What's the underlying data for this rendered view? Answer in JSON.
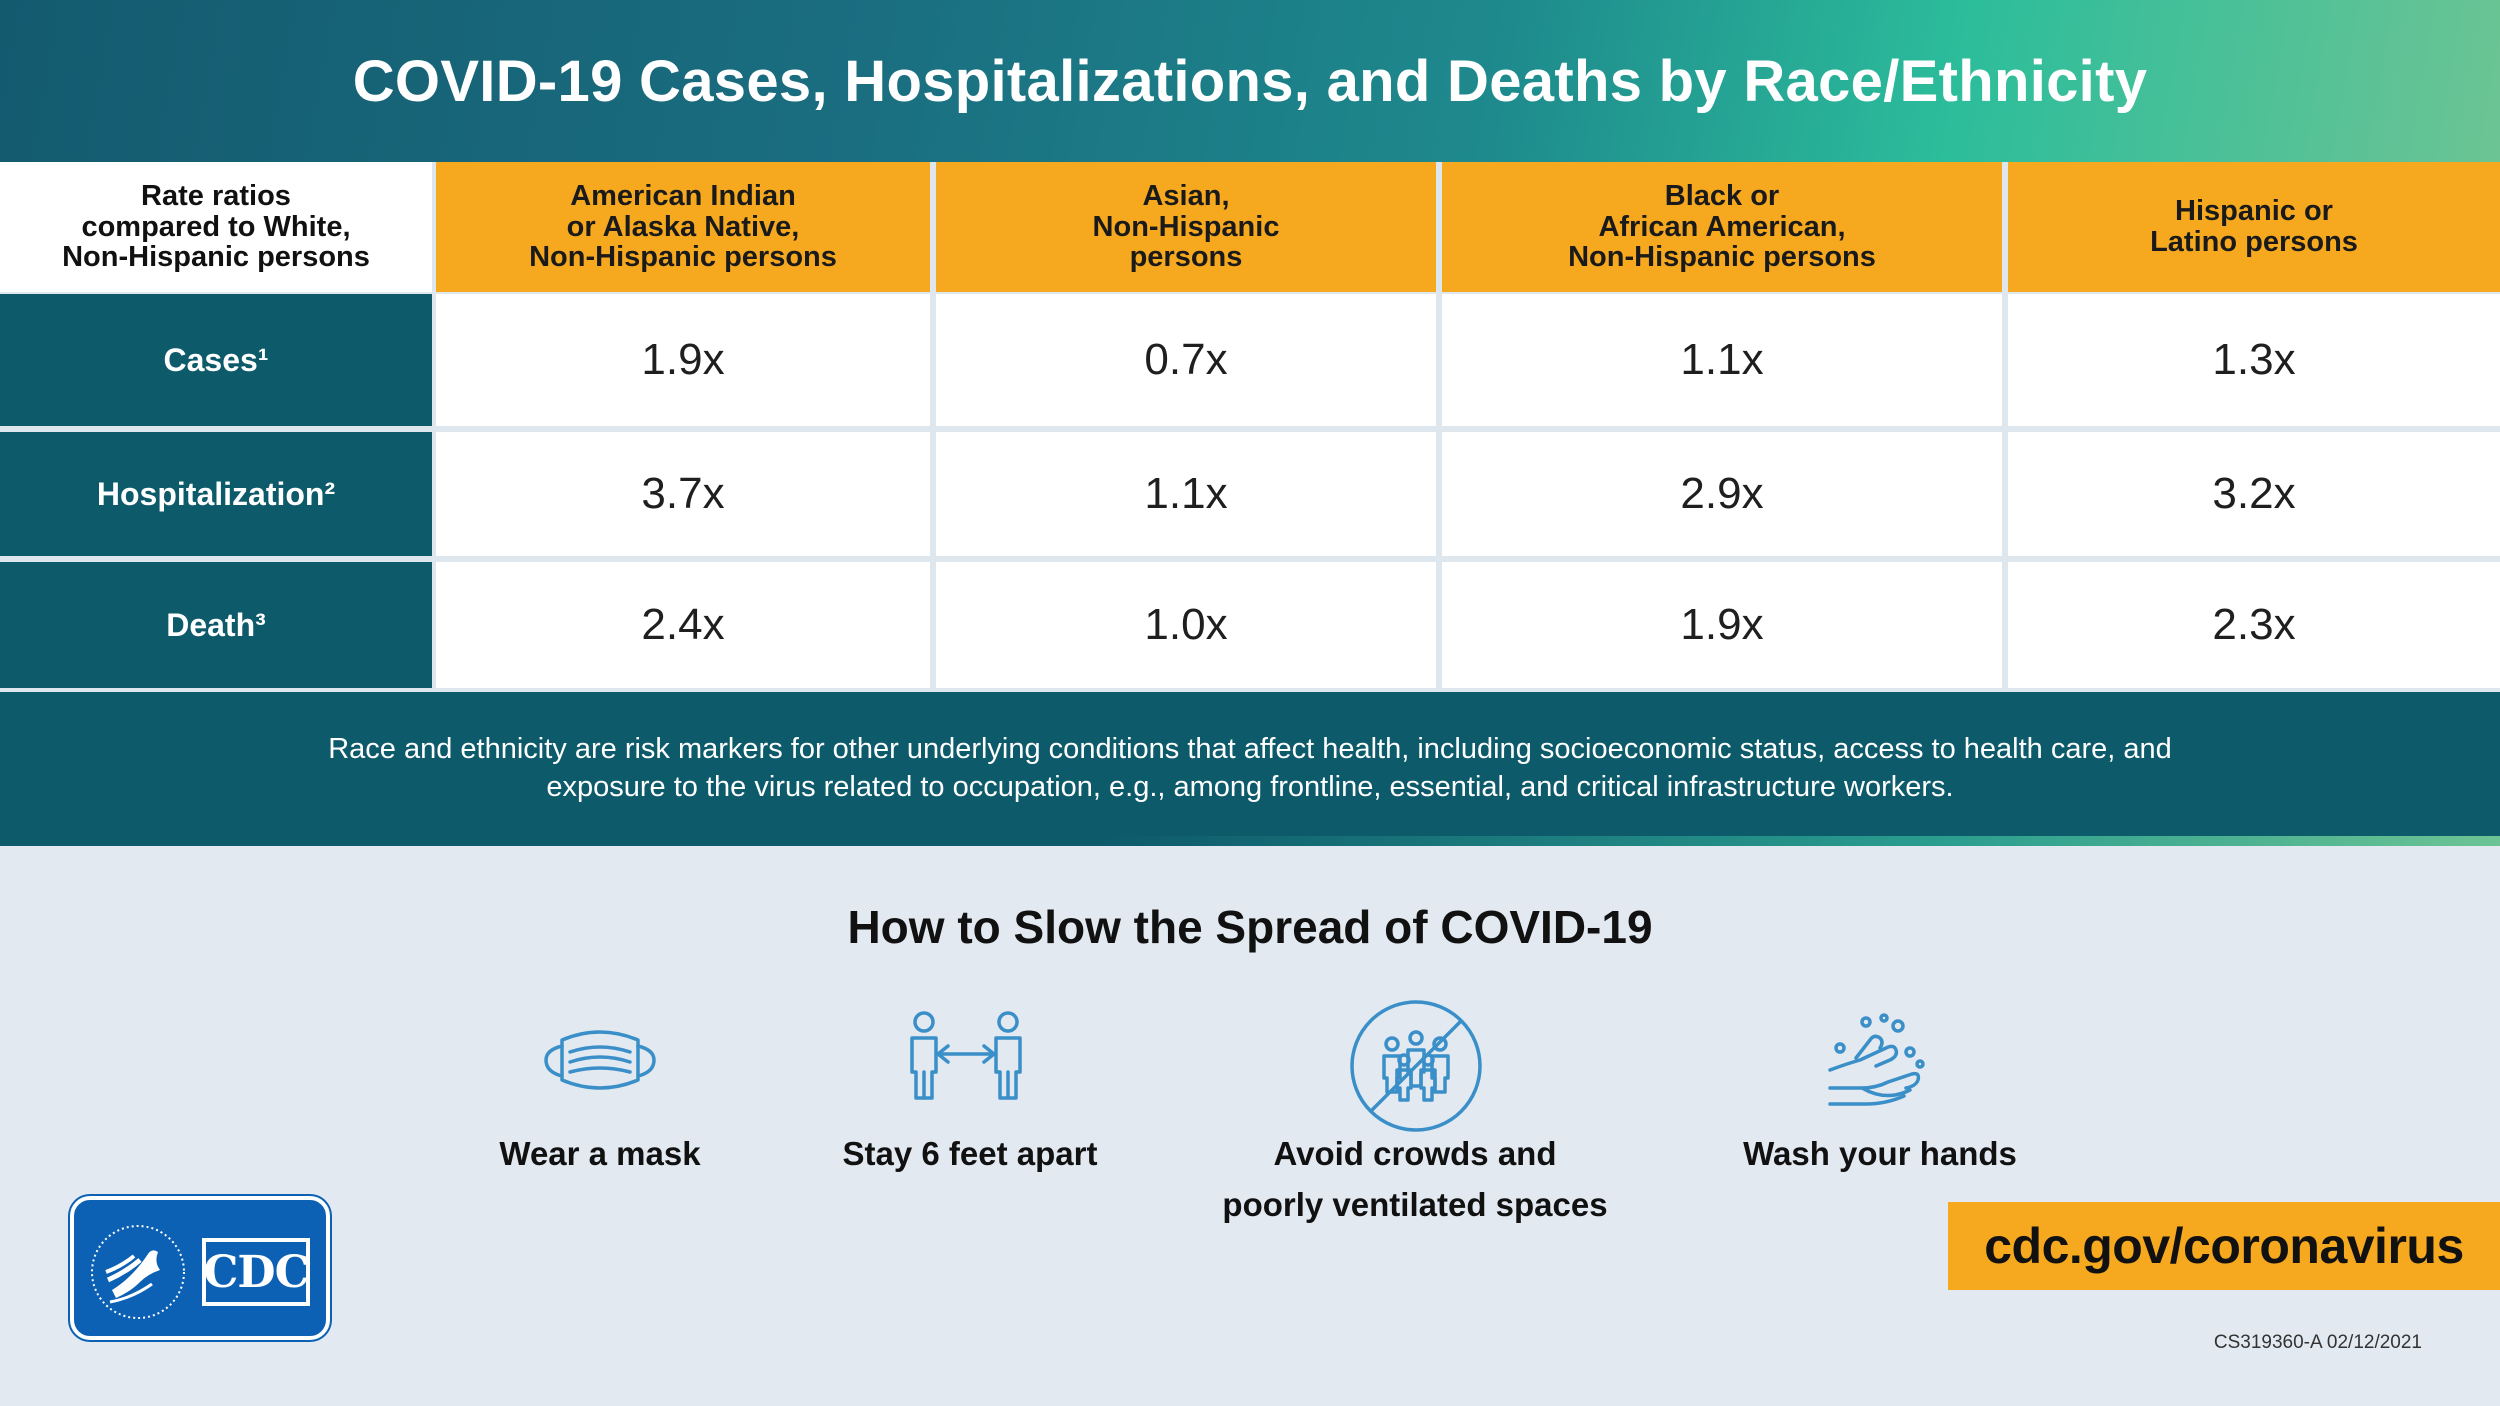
{
  "header": {
    "title": "COVID-19 Cases, Hospitalizations, and Deaths by Race/Ethnicity"
  },
  "table": {
    "corner_lines": [
      "Rate ratios",
      "compared to White,",
      "Non-Hispanic persons"
    ],
    "columns": [
      {
        "lines": [
          "American Indian",
          "or Alaska Native,",
          "Non-Hispanic persons"
        ]
      },
      {
        "lines": [
          "Asian,",
          "Non-Hispanic",
          "persons"
        ]
      },
      {
        "lines": [
          "Black or",
          "African American,",
          "Non-Hispanic persons"
        ]
      },
      {
        "lines": [
          "Hispanic or",
          "Latino persons"
        ]
      }
    ],
    "rows": [
      {
        "label": "Cases¹",
        "values": [
          "1.9x",
          "0.7x",
          "1.1x",
          "1.3x"
        ]
      },
      {
        "label": "Hospitalization²",
        "values": [
          "3.7x",
          "1.1x",
          "2.9x",
          "3.2x"
        ]
      },
      {
        "label": "Death³",
        "values": [
          "2.4x",
          "1.0x",
          "1.9x",
          "2.3x"
        ]
      }
    ]
  },
  "note": {
    "text": "Race and ethnicity are risk markers for other underlying conditions that affect health, including socioeconomic status, access to health care, and exposure to the virus related to occupation, e.g., among frontline, essential, and critical infrastructure workers."
  },
  "prevention": {
    "title": "How to Slow the Spread of COVID-19",
    "items": [
      {
        "icon": "mask-icon",
        "lines": [
          "Wear a mask"
        ]
      },
      {
        "icon": "distance-icon",
        "lines": [
          "Stay 6 feet apart"
        ]
      },
      {
        "icon": "no-crowds-icon",
        "lines": [
          "Avoid crowds and",
          "poorly ventilated spaces"
        ]
      },
      {
        "icon": "wash-hands-icon",
        "lines": [
          "Wash your hands"
        ]
      }
    ]
  },
  "footer": {
    "logo_text": "CDC",
    "url": "cdc.gov/coronavirus",
    "code": "CS319360-A 02/12/2021"
  },
  "colors": {
    "teal": "#0d5a6b",
    "orange": "#f6a91f",
    "icon_blue": "#3a8fc8",
    "cdc_blue": "#0d61b4",
    "background": "#e2e9f1"
  }
}
